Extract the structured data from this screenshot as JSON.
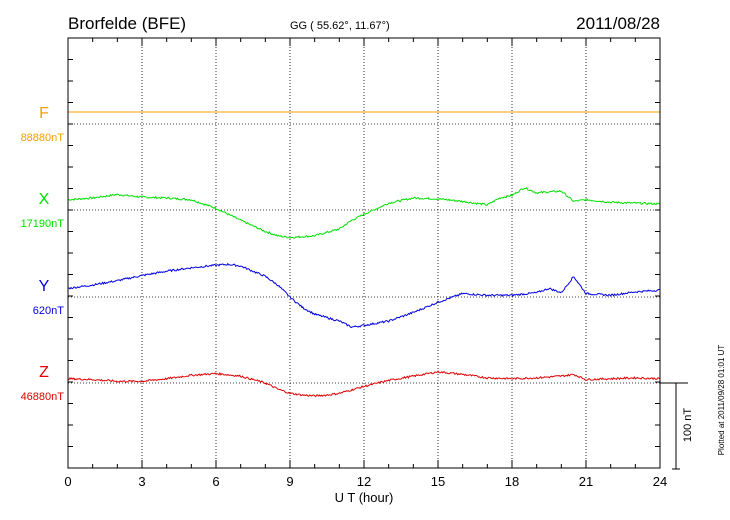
{
  "chart_data": {
    "type": "line",
    "title": "Brorfelde (BFE)",
    "subtitle": "GG ( 55.62°,  11.67°)",
    "date": "2011/08/28",
    "xlabel": "U T (hour)",
    "xlim": [
      0,
      24
    ],
    "xticks": [
      "0",
      "3",
      "6",
      "9",
      "12",
      "15",
      "18",
      "21",
      "24"
    ],
    "grid": true,
    "scale_bar_label": "100 nT",
    "scale_bar_nT": 100,
    "plotted_note": "Plotted at 2011/09/28 01:01  UT",
    "series": [
      {
        "name": "F",
        "baseline_label": "88880nT",
        "baseline_nT": 88880,
        "color": "#f0a000",
        "x": [
          0,
          3,
          6,
          9,
          12,
          15,
          18,
          21,
          24
        ],
        "y": [
          14,
          14,
          14,
          14,
          14,
          14,
          14,
          14,
          14
        ]
      },
      {
        "name": "X",
        "baseline_label": "17190nT",
        "baseline_nT": 17190,
        "color": "#00e000",
        "x": [
          0,
          1,
          2,
          3,
          4,
          5,
          6,
          7,
          8,
          8.5,
          9,
          10,
          11,
          11.5,
          12,
          13,
          14,
          15,
          16,
          17,
          17.5,
          18,
          18.5,
          19,
          20,
          20.5,
          21,
          22,
          23,
          24
        ],
        "y": [
          12,
          14,
          18,
          15,
          14,
          12,
          2,
          -12,
          -25,
          -30,
          -32,
          -30,
          -22,
          -12,
          -5,
          8,
          14,
          13,
          10,
          6,
          14,
          17,
          26,
          20,
          22,
          10,
          12,
          9,
          8,
          7
        ]
      },
      {
        "name": "Y",
        "baseline_label": "620nT",
        "baseline_nT": 620,
        "color": "#0000e0",
        "x": [
          0,
          1,
          2,
          3,
          4,
          5,
          6,
          6.5,
          7,
          8,
          8.5,
          9,
          9.5,
          10,
          10.5,
          11,
          11.5,
          12,
          13,
          14,
          15,
          16,
          17,
          18,
          19,
          19.5,
          20,
          20.5,
          21,
          22,
          23,
          24
        ],
        "y": [
          10,
          14,
          19,
          25,
          30,
          34,
          37,
          38,
          36,
          24,
          14,
          0,
          -12,
          -20,
          -24,
          -28,
          -35,
          -33,
          -28,
          -18,
          -6,
          4,
          2,
          2,
          5,
          10,
          5,
          24,
          4,
          2,
          6,
          8
        ]
      },
      {
        "name": "Z",
        "baseline_label": "46880nT",
        "baseline_nT": 46880,
        "color": "#e00000",
        "x": [
          0,
          1,
          2,
          3,
          4,
          5,
          6,
          7,
          8,
          8.5,
          9,
          9.5,
          10,
          10.5,
          11,
          12,
          13,
          14,
          15,
          16,
          17,
          18,
          19,
          20,
          20.5,
          21,
          22,
          23,
          24
        ],
        "y": [
          5,
          4,
          2,
          2,
          5,
          9,
          11,
          8,
          0,
          -7,
          -12,
          -14,
          -15,
          -14,
          -12,
          -4,
          3,
          8,
          13,
          10,
          6,
          5,
          6,
          8,
          10,
          4,
          5,
          6,
          5
        ]
      }
    ]
  }
}
